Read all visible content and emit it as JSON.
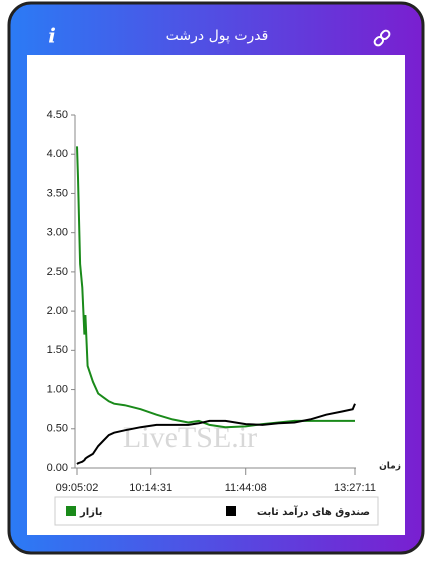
{
  "header": {
    "title": "قدرت پول درشت",
    "info_icon": "i"
  },
  "chart_data": {
    "type": "line",
    "xlabel": "زمان",
    "annotation": "LiveTSE.ir",
    "x": [
      "09:05:02",
      "09:06:00",
      "09:08:00",
      "09:10:00",
      "09:12:00",
      "09:13:00",
      "09:15:00",
      "09:20:00",
      "09:25:00",
      "09:30:00",
      "09:35:00",
      "09:40:00",
      "09:50:00",
      "10:05:00",
      "10:20:00",
      "10:35:00",
      "10:50:00",
      "11:00:00",
      "11:10:00",
      "11:25:00",
      "11:44:08",
      "12:00:00",
      "12:15:00",
      "12:30:00",
      "12:45:00",
      "13:00:00",
      "13:15:00",
      "13:25:00",
      "13:27:11"
    ],
    "series": [
      {
        "name": "بازار",
        "color": "#1a8a1a",
        "values": [
          4.1,
          3.7,
          2.6,
          2.3,
          1.7,
          1.95,
          1.3,
          1.1,
          0.95,
          0.9,
          0.85,
          0.82,
          0.8,
          0.75,
          0.68,
          0.62,
          0.58,
          0.6,
          0.55,
          0.52,
          0.53,
          0.56,
          0.58,
          0.6,
          0.6,
          0.6,
          0.6,
          0.6,
          0.6
        ]
      },
      {
        "name": "صندوق های درآمد ثابت",
        "color": "#000000",
        "values": [
          0.05,
          0.06,
          0.07,
          0.08,
          0.1,
          0.12,
          0.14,
          0.18,
          0.28,
          0.35,
          0.42,
          0.45,
          0.48,
          0.52,
          0.55,
          0.55,
          0.55,
          0.57,
          0.6,
          0.6,
          0.56,
          0.55,
          0.57,
          0.58,
          0.62,
          0.68,
          0.72,
          0.75,
          0.82
        ]
      }
    ],
    "xlim": [
      "09:05:02",
      "13:27:11"
    ],
    "xticks": [
      "09:05:02",
      "10:14:31",
      "11:44:08",
      "13:27:11"
    ],
    "ylim": [
      0,
      4.5
    ],
    "yticks": [
      {
        "value": 0,
        "label": "0.00"
      },
      {
        "value": 0.5,
        "label": "0.50"
      },
      {
        "value": 1,
        "label": "1.00"
      },
      {
        "value": 1.5,
        "label": "1.50"
      },
      {
        "value": 2,
        "label": "2.00"
      },
      {
        "value": 2.5,
        "label": "2.50"
      },
      {
        "value": 3,
        "label": "3.00"
      },
      {
        "value": 3.5,
        "label": "3.50"
      },
      {
        "value": 4,
        "label": "4.00"
      },
      {
        "value": 4.5,
        "label": "4.50"
      }
    ],
    "grid": false,
    "legend": "bottom"
  }
}
